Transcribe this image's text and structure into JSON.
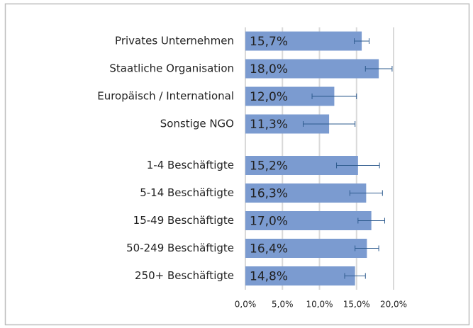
{
  "chart_data": {
    "type": "bar",
    "orientation": "horizontal",
    "categories": [
      "Privates Unternehmen",
      "Staatliche Organisation",
      "Europäisch / International",
      "Sonstige NGO",
      null,
      "1-4 Beschäftigte",
      "5-14 Beschäftigte",
      "15-49 Beschäftigte",
      "50-249 Beschäftigte",
      "250+ Beschäftigte"
    ],
    "values": [
      15.7,
      18.0,
      12.0,
      11.3,
      null,
      15.2,
      16.3,
      17.0,
      16.4,
      14.8
    ],
    "value_labels": [
      "15,7%",
      "18,0%",
      "12,0%",
      "11,3%",
      null,
      "15,2%",
      "16,3%",
      "17,0%",
      "16,4%",
      "14,8%"
    ],
    "errors": [
      1.0,
      1.8,
      3.0,
      3.5,
      null,
      2.9,
      2.2,
      1.8,
      1.6,
      1.4
    ],
    "color": "#7b9bd0",
    "error_color": "#2e5b8e",
    "xlim": [
      0,
      20
    ],
    "xticks": [
      {
        "value": 0,
        "label": "0,0%"
      },
      {
        "value": 5,
        "label": "5,0%"
      },
      {
        "value": 10,
        "label": "10,0%"
      },
      {
        "value": 15,
        "label": "15,0%"
      },
      {
        "value": 20,
        "label": "20,0%"
      }
    ],
    "grid": true
  }
}
